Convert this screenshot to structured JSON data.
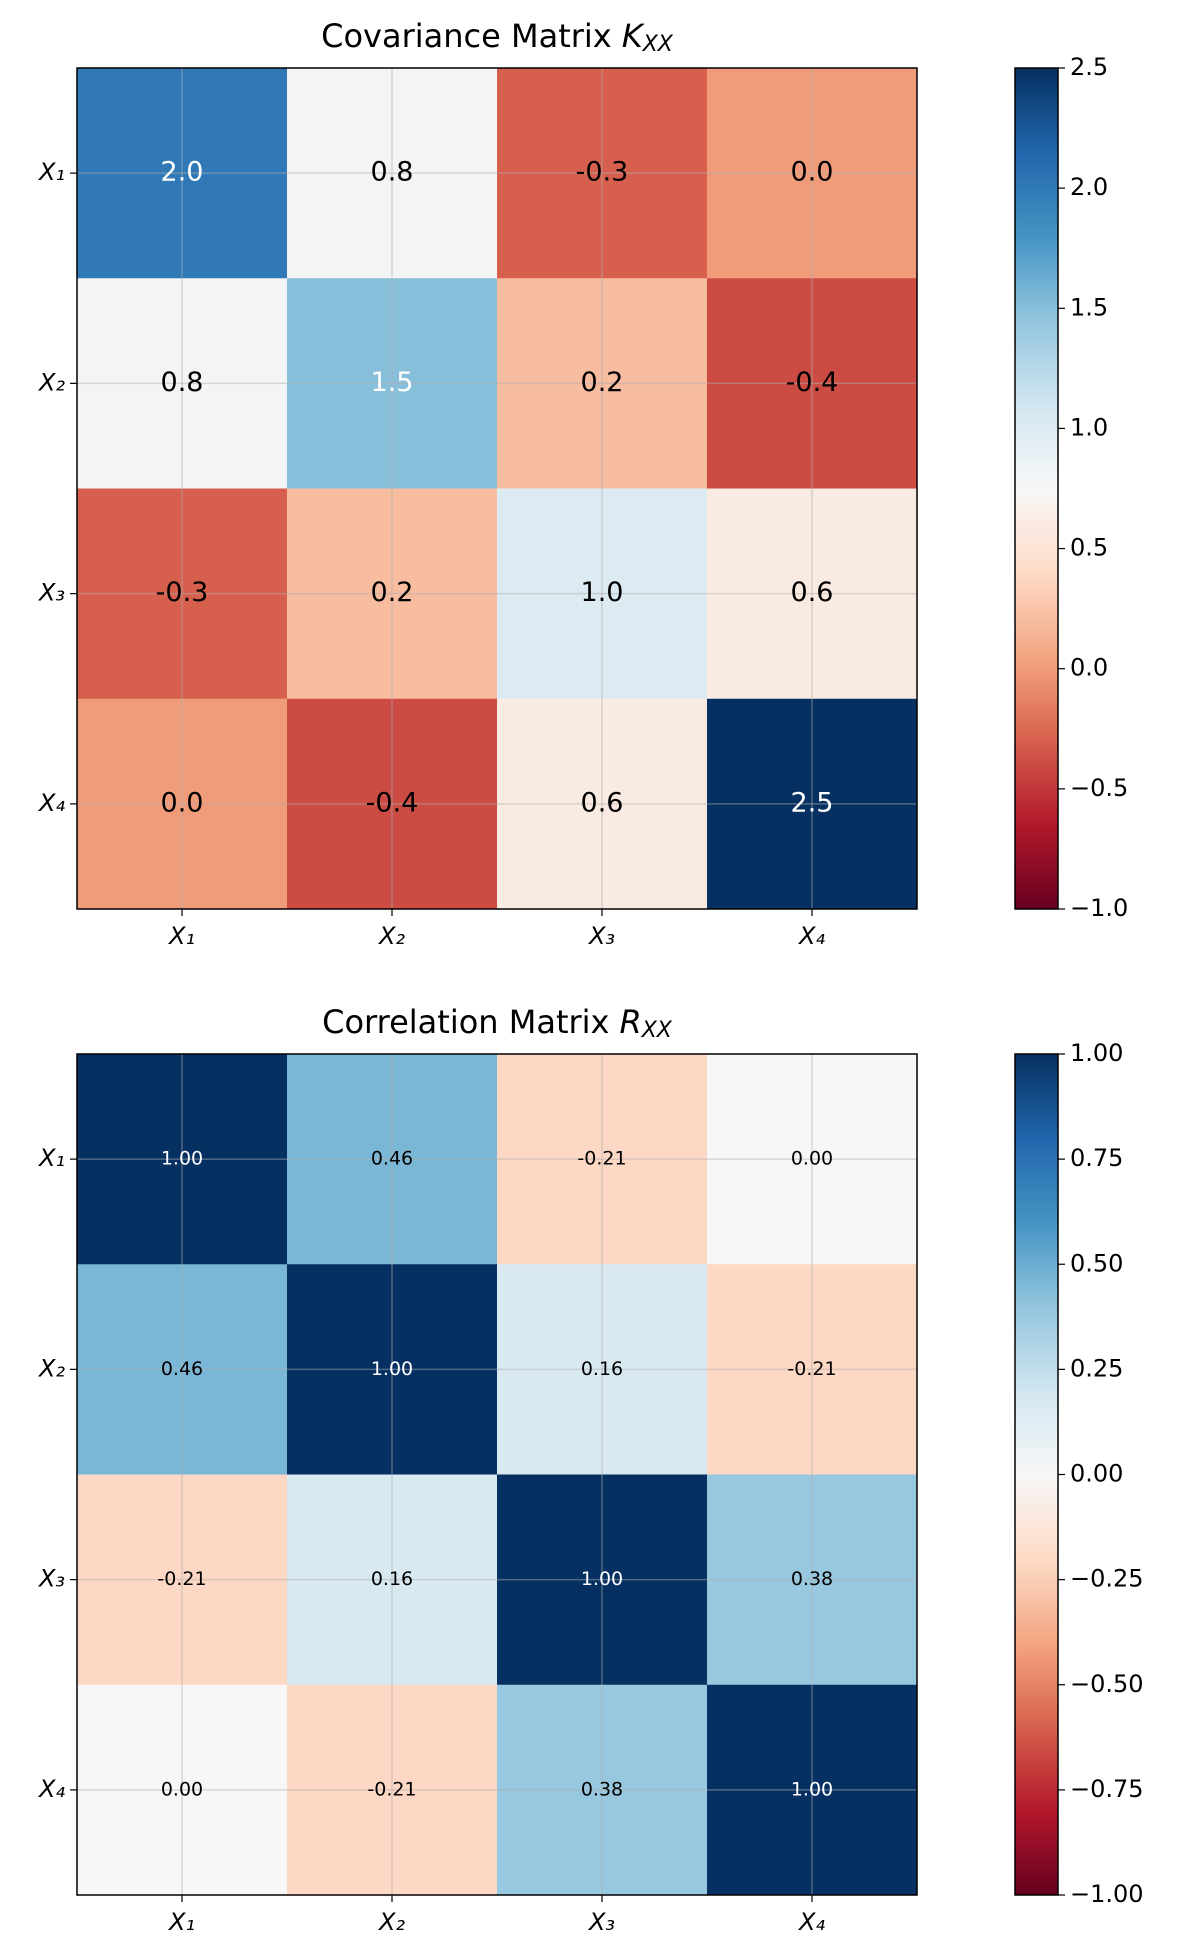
{
  "chart_data": [
    {
      "type": "heatmap",
      "title": "Covariance Matrix",
      "title_symbol": "K",
      "title_subscript": "XX",
      "x_categories": [
        "X₁",
        "X₂",
        "X₃",
        "X₄"
      ],
      "y_categories": [
        "X₁",
        "X₂",
        "X₃",
        "X₄"
      ],
      "colormap": "RdBu",
      "values": [
        [
          2.0,
          0.8,
          -0.3,
          0.0
        ],
        [
          0.8,
          1.5,
          0.2,
          -0.4
        ],
        [
          -0.3,
          0.2,
          1.0,
          0.6
        ],
        [
          0.0,
          -0.4,
          0.6,
          2.5
        ]
      ],
      "value_labels": [
        [
          "2.0",
          "0.8",
          "-0.3",
          "0.0"
        ],
        [
          "0.8",
          "1.5",
          "0.2",
          "-0.4"
        ],
        [
          "-0.3",
          "0.2",
          "1.0",
          "0.6"
        ],
        [
          "0.0",
          "-0.4",
          "0.6",
          "2.5"
        ]
      ],
      "value_label_colors": [
        [
          "#ffffff",
          "#000000",
          "#000000",
          "#000000"
        ],
        [
          "#000000",
          "#ffffff",
          "#000000",
          "#000000"
        ],
        [
          "#000000",
          "#000000",
          "#000000",
          "#000000"
        ],
        [
          "#000000",
          "#000000",
          "#000000",
          "#ffffff"
        ]
      ],
      "clim": [
        -1.0,
        2.5
      ],
      "cticks": [
        {
          "value": -1.0,
          "label": "−1.0"
        },
        {
          "value": -0.5,
          "label": "−0.5"
        },
        {
          "value": 0.0,
          "label": "0.0"
        },
        {
          "value": 0.5,
          "label": "0.5"
        },
        {
          "value": 1.0,
          "label": "1.0"
        },
        {
          "value": 1.5,
          "label": "1.5"
        },
        {
          "value": 2.0,
          "label": "2.0"
        },
        2.5
      ],
      "grid": true
    },
    {
      "type": "heatmap",
      "title": "Correlation Matrix",
      "title_symbol": "R",
      "title_subscript": "XX",
      "x_categories": [
        "X₁",
        "X₂",
        "X₃",
        "X₄"
      ],
      "y_categories": [
        "X₁",
        "X₂",
        "X₃",
        "X₄"
      ],
      "colormap": "RdBu",
      "values": [
        [
          1.0,
          0.46,
          -0.21,
          0.0
        ],
        [
          0.46,
          1.0,
          0.16,
          -0.21
        ],
        [
          -0.21,
          0.16,
          1.0,
          0.38
        ],
        [
          0.0,
          -0.21,
          0.38,
          1.0
        ]
      ],
      "value_labels": [
        [
          "1.00",
          "0.46",
          "-0.21",
          "0.00"
        ],
        [
          "0.46",
          "1.00",
          "0.16",
          "-0.21"
        ],
        [
          "-0.21",
          "0.16",
          "1.00",
          "0.38"
        ],
        [
          "0.00",
          "-0.21",
          "0.38",
          "1.00"
        ]
      ],
      "value_label_colors": [
        [
          "#ffffff",
          "#000000",
          "#000000",
          "#000000"
        ],
        [
          "#000000",
          "#ffffff",
          "#000000",
          "#000000"
        ],
        [
          "#000000",
          "#000000",
          "#ffffff",
          "#000000"
        ],
        [
          "#000000",
          "#000000",
          "#000000",
          "#ffffff"
        ]
      ],
      "clim": [
        -1.0,
        1.0
      ],
      "cticks": [
        {
          "value": -1.0,
          "label": "−1.00"
        },
        {
          "value": -0.75,
          "label": "−0.75"
        },
        {
          "value": -0.5,
          "label": "−0.50"
        },
        {
          "value": -0.25,
          "label": "−0.25"
        },
        {
          "value": 0.0,
          "label": "0.00"
        },
        {
          "value": 0.25,
          "label": "0.25"
        },
        {
          "value": 0.5,
          "label": "0.50"
        },
        {
          "value": 0.75,
          "label": "0.75"
        },
        {
          "value": 1.0,
          "label": "1.00"
        }
      ],
      "grid": true
    }
  ]
}
